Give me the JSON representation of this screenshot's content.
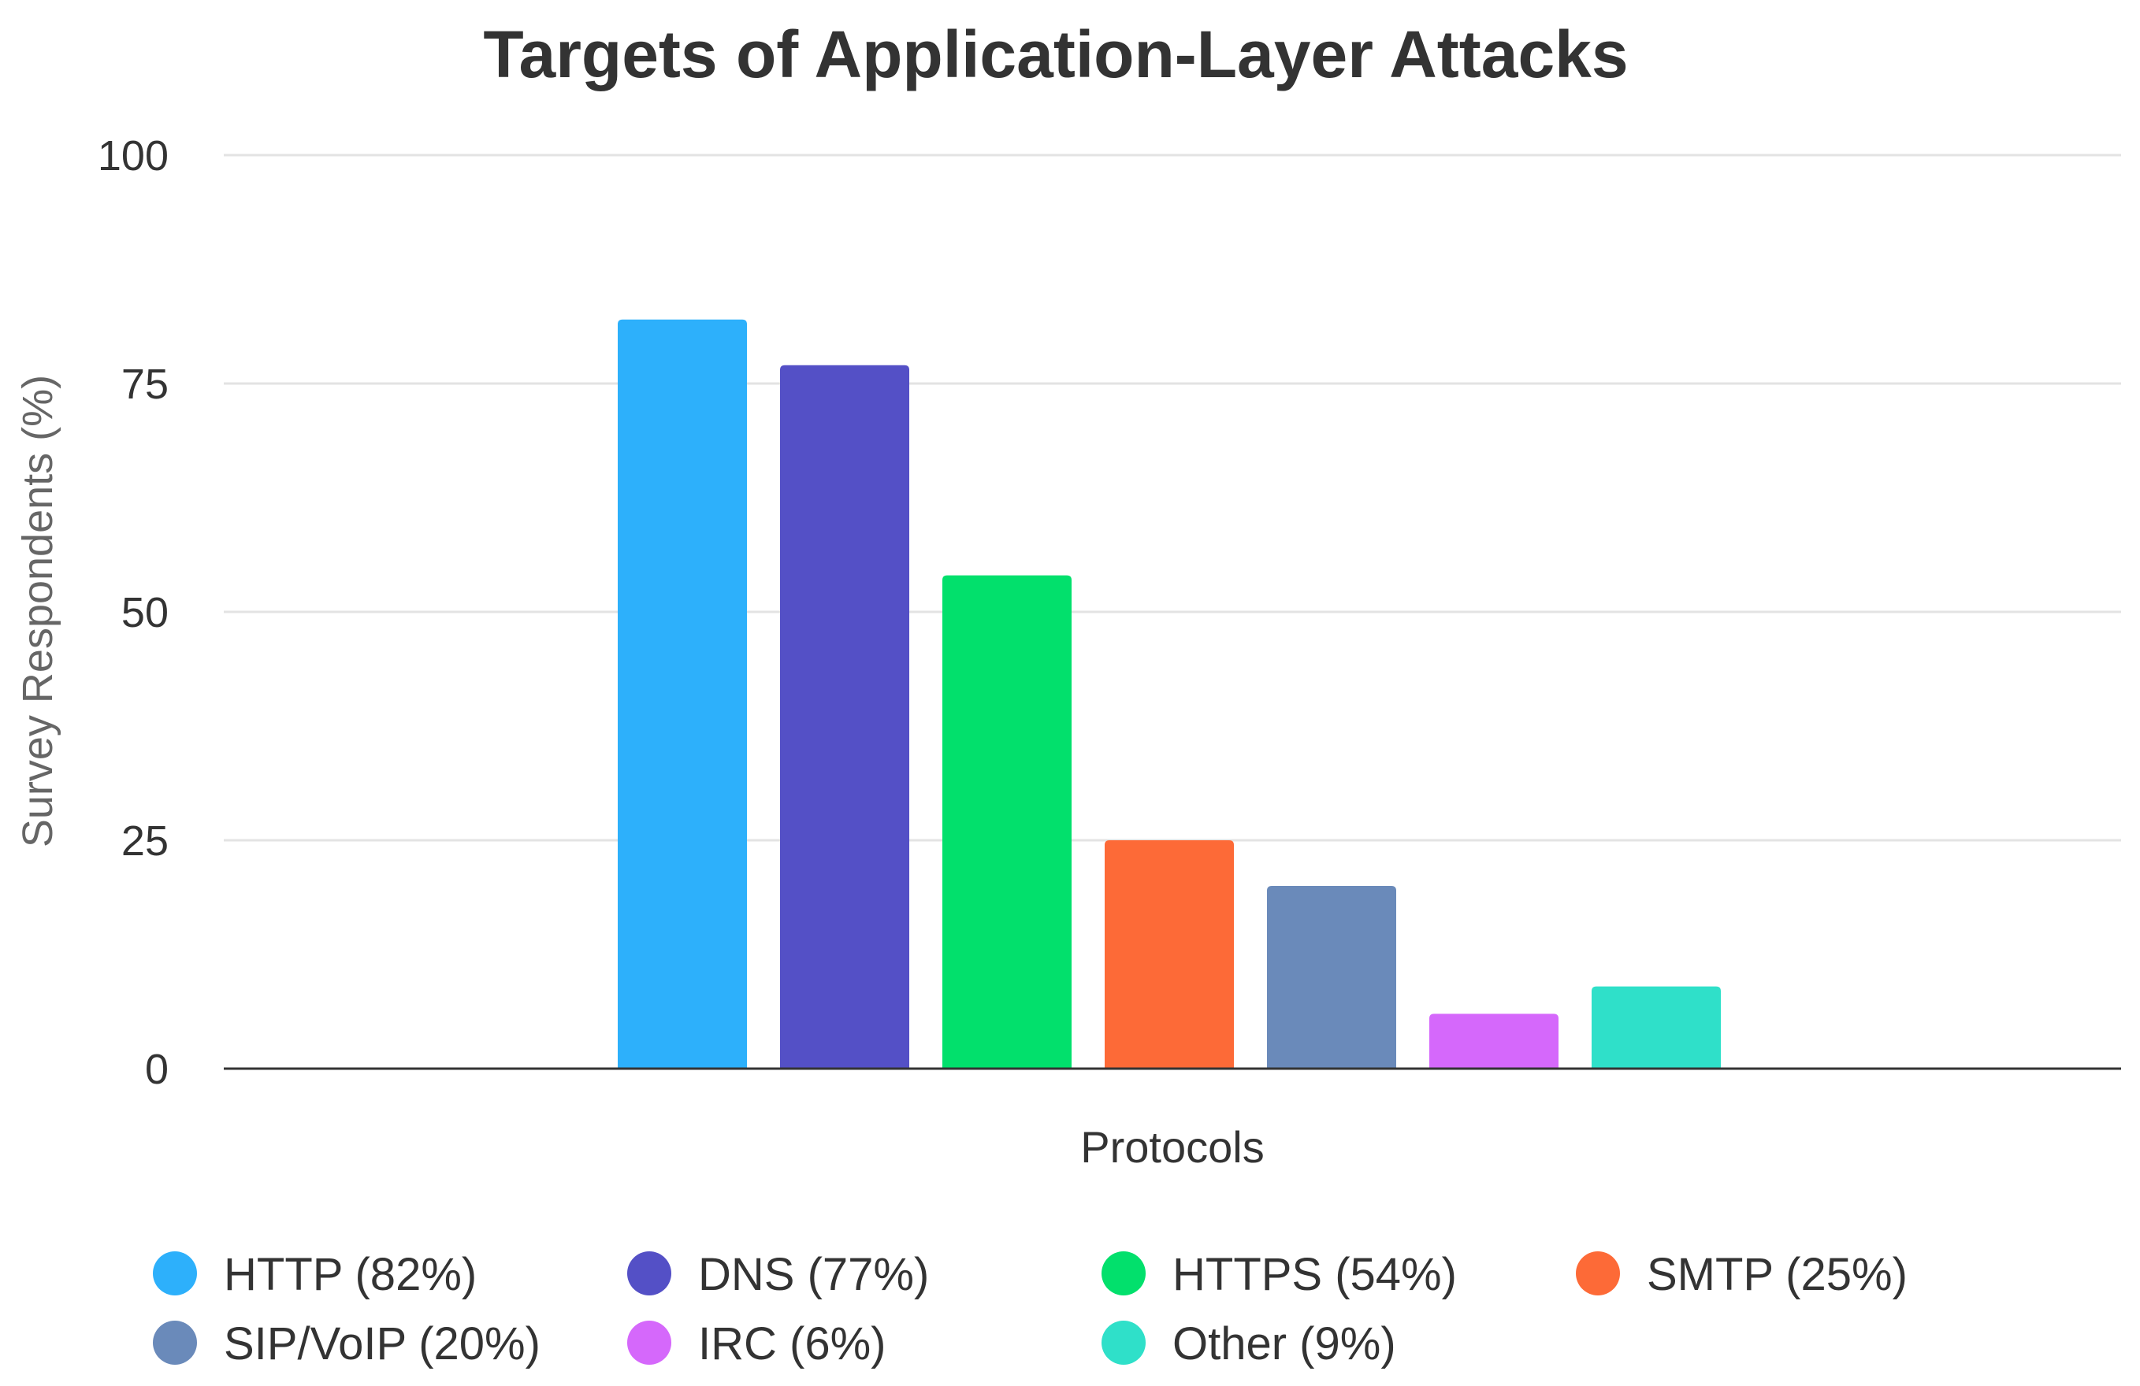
{
  "chart_data": {
    "type": "bar",
    "title": "Targets of Application-Layer Attacks",
    "xlabel": "Protocols",
    "ylabel": "Survey Respondents (%)",
    "ylim": [
      0,
      100
    ],
    "yticks": [
      0,
      25,
      50,
      75,
      100
    ],
    "grid": true,
    "legend_position": "bottom",
    "categories": [
      "HTTP (82%)",
      "DNS (77%)",
      "HTTPS (54%)",
      "SMTP (25%)",
      "SIP/VoIP (20%)",
      "IRC (6%)",
      "Other (9%)"
    ],
    "values": [
      82,
      77,
      54,
      25,
      20,
      6,
      9
    ],
    "colors": [
      "#2db0fb",
      "#5450c6",
      "#02e06c",
      "#fd6a37",
      "#6a8aba",
      "#d568fb",
      "#2fe0c9"
    ]
  }
}
